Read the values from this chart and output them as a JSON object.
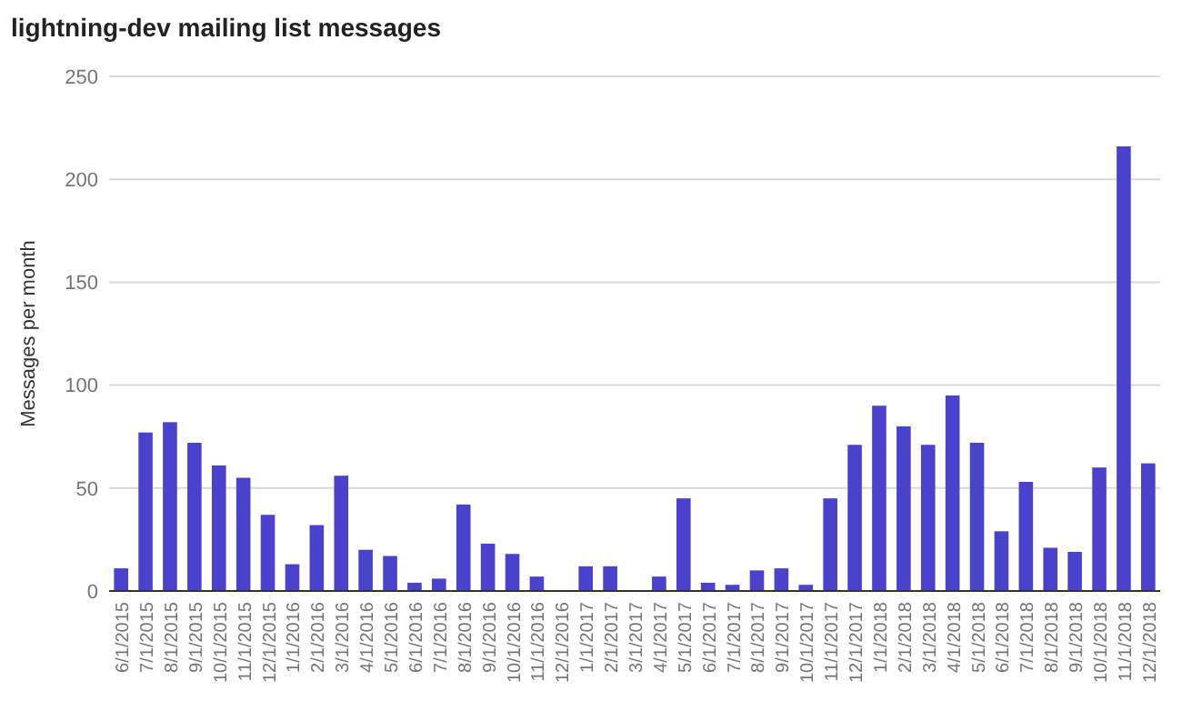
{
  "chart_data": {
    "type": "bar",
    "title": "lightning-dev mailing list messages",
    "ylabel": "Messages per month",
    "categories": [
      "6/1/2015",
      "7/1/2015",
      "8/1/2015",
      "9/1/2015",
      "10/1/2015",
      "11/1/2015",
      "12/1/2015",
      "1/1/2016",
      "2/1/2016",
      "3/1/2016",
      "4/1/2016",
      "5/1/2016",
      "6/1/2016",
      "7/1/2016",
      "8/1/2016",
      "9/1/2016",
      "10/1/2016",
      "11/1/2016",
      "12/1/2016",
      "1/1/2017",
      "2/1/2017",
      "3/1/2017",
      "4/1/2017",
      "5/1/2017",
      "6/1/2017",
      "7/1/2017",
      "8/1/2017",
      "9/1/2017",
      "10/1/2017",
      "11/1/2017",
      "12/1/2017",
      "1/1/2018",
      "2/1/2018",
      "3/1/2018",
      "4/1/2018",
      "5/1/2018",
      "6/1/2018",
      "7/1/2018",
      "8/1/2018",
      "9/1/2018",
      "10/1/2018",
      "11/1/2018",
      "12/1/2018"
    ],
    "values": [
      11,
      77,
      82,
      72,
      61,
      55,
      37,
      13,
      32,
      56,
      20,
      17,
      4,
      6,
      42,
      23,
      18,
      7,
      0,
      12,
      12,
      0,
      7,
      45,
      4,
      3,
      10,
      11,
      3,
      45,
      71,
      90,
      80,
      71,
      95,
      72,
      29,
      53,
      21,
      19,
      60,
      216,
      62
    ],
    "color": "#4a41cc",
    "ylim": [
      0,
      250
    ],
    "yticks": [
      0,
      50,
      100,
      150,
      200,
      250
    ],
    "grid": "y"
  }
}
